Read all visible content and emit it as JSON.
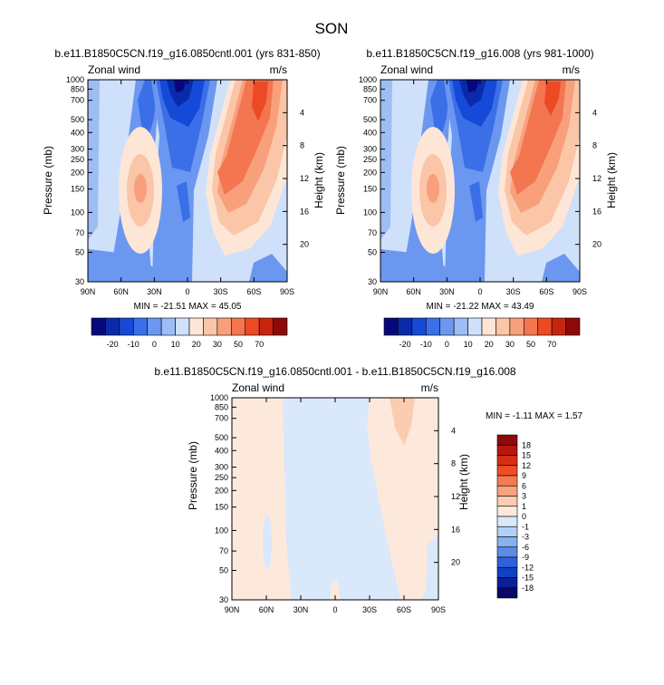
{
  "figure": {
    "title": "SON"
  },
  "chart_data": [
    {
      "type": "heatmap",
      "title": "b.e11.B1850C5CN.f19_g16.0850cntl.001 (yrs 831-850)",
      "left_label": "Zonal wind",
      "right_label": "m/s",
      "ylabel": "Pressure (mb)",
      "ylabel_right": "Height (km)",
      "x_ticks": [
        "90N",
        "60N",
        "30N",
        "0",
        "30S",
        "60S",
        "90S"
      ],
      "y_ticks": [
        "30",
        "50",
        "70",
        "100",
        "150",
        "200",
        "250",
        "300",
        "400",
        "500",
        "700",
        "850",
        "1000"
      ],
      "y_ticks_right": [
        "20",
        "16",
        "12",
        "8",
        "4"
      ],
      "y_scale": "log",
      "y_range_mb": [
        1000,
        30
      ],
      "minmax": "MIN = -21.51  MAX = 45.05",
      "min": -21.51,
      "max": 45.05,
      "colorbar_labels": [
        "-20",
        "-10",
        "0",
        "10",
        "20",
        "30",
        "50",
        "70"
      ],
      "grid": false
    },
    {
      "type": "heatmap",
      "title": "b.e11.B1850C5CN.f19_g16.008 (yrs 981-1000)",
      "left_label": "Zonal wind",
      "right_label": "m/s",
      "ylabel": "Pressure (mb)",
      "ylabel_right": "Height (km)",
      "x_ticks": [
        "90N",
        "60N",
        "30N",
        "0",
        "30S",
        "60S",
        "90S"
      ],
      "y_ticks": [
        "30",
        "50",
        "70",
        "100",
        "150",
        "200",
        "250",
        "300",
        "400",
        "500",
        "700",
        "850",
        "1000"
      ],
      "y_ticks_right": [
        "20",
        "16",
        "12",
        "8",
        "4"
      ],
      "y_scale": "log",
      "y_range_mb": [
        1000,
        30
      ],
      "minmax": "MIN = -21.22  MAX = 43.49",
      "min": -21.22,
      "max": 43.49,
      "colorbar_labels": [
        "-20",
        "-10",
        "0",
        "10",
        "20",
        "30",
        "50",
        "70"
      ],
      "grid": false
    },
    {
      "type": "heatmap",
      "title": "b.e11.B1850C5CN.f19_g16.0850cntl.001 - b.e11.B1850C5CN.f19_g16.008",
      "left_label": "Zonal wind",
      "right_label": "m/s",
      "ylabel": "Pressure (mb)",
      "ylabel_right": "Height (km)",
      "x_ticks": [
        "90N",
        "60N",
        "30N",
        "0",
        "30S",
        "60S",
        "90S"
      ],
      "y_ticks": [
        "30",
        "50",
        "70",
        "100",
        "150",
        "200",
        "250",
        "300",
        "400",
        "500",
        "700",
        "850",
        "1000"
      ],
      "y_ticks_right": [
        "20",
        "16",
        "12",
        "8",
        "4"
      ],
      "y_scale": "log",
      "y_range_mb": [
        1000,
        30
      ],
      "minmax": "MIN = -1.11  MAX =  1.57",
      "min": -1.11,
      "max": 1.57,
      "colorbar_labels": [
        "18",
        "15",
        "12",
        "9",
        "6",
        "3",
        "1",
        "0",
        "-1",
        "-3",
        "-6",
        "-9",
        "-12",
        "-15",
        "-18"
      ],
      "grid": false
    }
  ],
  "colors": {
    "main_palette": [
      "#08087c",
      "#0a2ba9",
      "#1549d8",
      "#3b6fe8",
      "#6b97f0",
      "#9dbdf5",
      "#cfe1fa",
      "#fde6d6",
      "#fbc5a8",
      "#f8a07c",
      "#f47650",
      "#ec4a25",
      "#c8250e",
      "#8e0909"
    ],
    "diff_palette": [
      "#8e0909",
      "#b81710",
      "#d92d12",
      "#ef4d22",
      "#f77a4f",
      "#f9a37d",
      "#fcccb0",
      "#fde9dc",
      "#d9e8fb",
      "#b3cff6",
      "#87b1f0",
      "#5a8ce8",
      "#2f63dd",
      "#1240c4",
      "#0b1f96",
      "#07086a"
    ]
  }
}
